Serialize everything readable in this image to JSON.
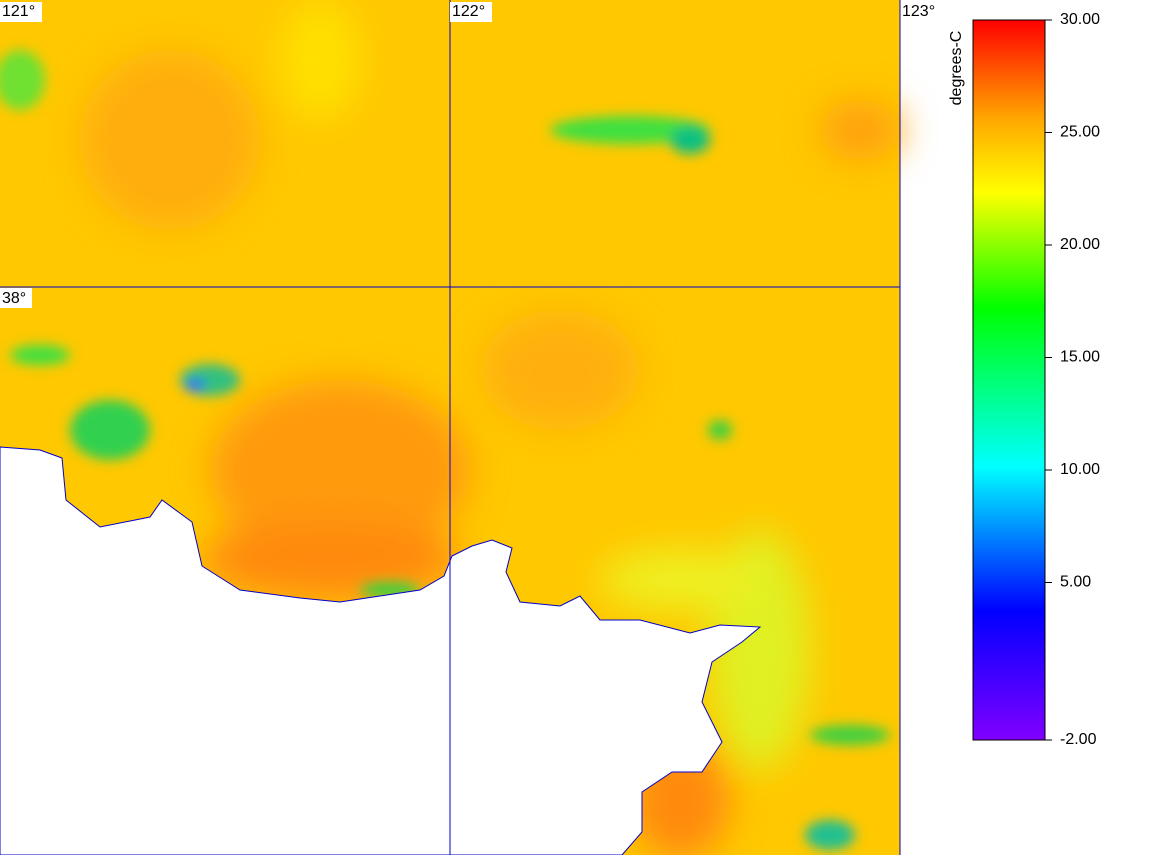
{
  "map": {
    "grid_labels": {
      "lon_121": "121°",
      "lon_122": "122°",
      "lon_123": "123°",
      "lat_38": "38°"
    }
  },
  "colorbar": {
    "title": "degrees-C",
    "lim": [
      -2,
      30
    ],
    "ticks": [
      {
        "value": 30,
        "label": "30.00"
      },
      {
        "value": 25,
        "label": "25.00"
      },
      {
        "value": 20,
        "label": "20.00"
      },
      {
        "value": 15,
        "label": "15.00"
      },
      {
        "value": 10,
        "label": "10.00"
      },
      {
        "value": 5,
        "label": "5.00"
      },
      {
        "value": -2,
        "label": "-2.00"
      }
    ]
  }
}
